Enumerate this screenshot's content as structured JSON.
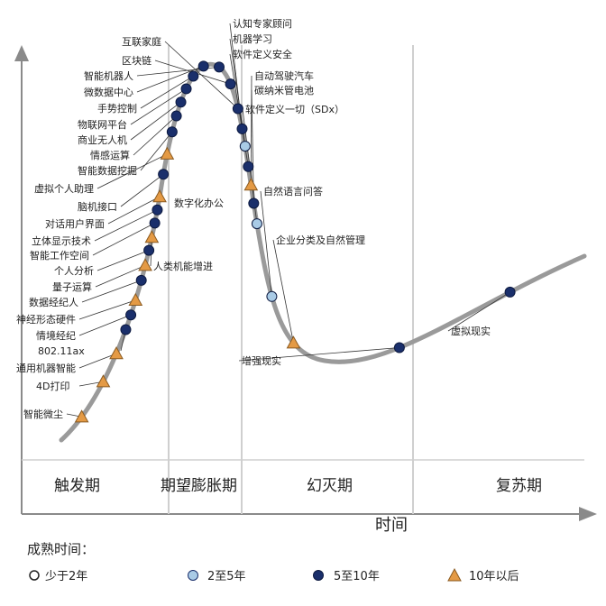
{
  "chart_data": {
    "type": "scatter",
    "title": "",
    "xlabel": "时间",
    "ylabel": "",
    "phases": [
      "触发期",
      "期望膨胀期",
      "幻灭期",
      "复苏期"
    ],
    "legend": {
      "title": "成熟时间：",
      "items": [
        {
          "key": "lt2",
          "label": "少于2年",
          "marker": "circle",
          "color": "#ffffff"
        },
        {
          "key": "2to5",
          "label": "2至5年",
          "marker": "circle",
          "color": "#a9cbe6"
        },
        {
          "key": "5to10",
          "label": "5至10年",
          "marker": "circle",
          "color": "#1a2f6b"
        },
        {
          "key": "gt10",
          "label": "10年以后",
          "marker": "triangle",
          "color": "#e49a45"
        }
      ]
    },
    "curve_color": "#9a9a9a",
    "points": [
      {
        "label": "智能微尘",
        "t": 0.03,
        "maturity": "gt10"
      },
      {
        "label": "4D打印",
        "t": 0.07,
        "maturity": "gt10"
      },
      {
        "label": "通用机器智能",
        "t": 0.1,
        "maturity": "gt10"
      },
      {
        "label": "802.11ax",
        "t": 0.125,
        "maturity": "5to10"
      },
      {
        "label": "情境经纪",
        "t": 0.14,
        "maturity": "5to10"
      },
      {
        "label": "神经形态硬件",
        "t": 0.155,
        "maturity": "gt10"
      },
      {
        "label": "数据经纪人",
        "t": 0.175,
        "maturity": "5to10"
      },
      {
        "label": "量子运算",
        "t": 0.19,
        "maturity": "gt10"
      },
      {
        "label": "个人分析",
        "t": 0.205,
        "maturity": "5to10"
      },
      {
        "label": "人类机能增进",
        "t": 0.218,
        "maturity": "gt10"
      },
      {
        "label": "智能工作空间",
        "t": 0.232,
        "maturity": "5to10"
      },
      {
        "label": "立体显示技术",
        "t": 0.245,
        "maturity": "5to10"
      },
      {
        "label": "对话用户界面",
        "t": 0.258,
        "maturity": "gt10"
      },
      {
        "label": "脑机接口",
        "t": 0.28,
        "maturity": "5to10"
      },
      {
        "label": "虚拟个人助理",
        "t": 0.3,
        "maturity": "gt10"
      },
      {
        "label": "智能数据挖掘",
        "t": 0.322,
        "maturity": "5to10"
      },
      {
        "label": "情感运算",
        "t": 0.338,
        "maturity": "5to10"
      },
      {
        "label": "商业无人机",
        "t": 0.352,
        "maturity": "5to10"
      },
      {
        "label": "物联网平台",
        "t": 0.366,
        "maturity": "5to10"
      },
      {
        "label": "手势控制",
        "t": 0.38,
        "maturity": "5to10"
      },
      {
        "label": "微数据中心",
        "t": 0.394,
        "maturity": "5to10"
      },
      {
        "label": "智能机器人",
        "t": 0.41,
        "maturity": "5to10"
      },
      {
        "label": "区块链",
        "t": 0.43,
        "maturity": "5to10"
      },
      {
        "label": "互联家庭",
        "t": 0.455,
        "maturity": "5to10"
      },
      {
        "label": "认知专家顾问",
        "t": 0.475,
        "maturity": "5to10"
      },
      {
        "label": "机器学习",
        "t": 0.492,
        "maturity": "2to5"
      },
      {
        "label": "软件定义安全",
        "t": 0.512,
        "maturity": "5to10"
      },
      {
        "label": "自动驾驶汽车",
        "t": 0.53,
        "maturity": "gt10"
      },
      {
        "label": "碳纳米管电池",
        "t": 0.548,
        "maturity": "5to10"
      },
      {
        "label": "软件定义一切（SDx）",
        "t": 0.568,
        "maturity": "2to5"
      },
      {
        "label": "自然语言问答",
        "t": 0.64,
        "maturity": "2to5"
      },
      {
        "label": "企业分类及自然管理",
        "t": 0.69,
        "maturity": "gt10"
      },
      {
        "label": "增强现实",
        "t": 0.8,
        "maturity": "5to10"
      },
      {
        "label": "虚拟现实",
        "t": 0.92,
        "maturity": "5to10"
      }
    ],
    "annotations": [
      "数字化办公"
    ]
  }
}
